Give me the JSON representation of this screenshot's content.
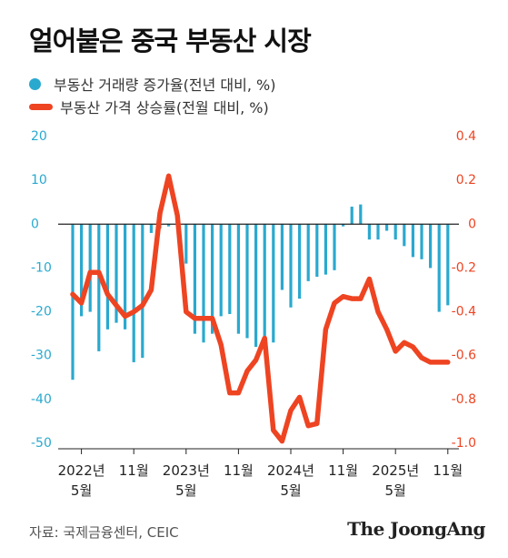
{
  "title": "얼어붙은 중국 부동산 시장",
  "legend": {
    "volume": "부동산 거래량 증가율(전년 대비, %)",
    "price": "부동산 가격 상승률(전월 대비, %)"
  },
  "colors": {
    "volume": "#2aa9cf",
    "price": "#ee4422"
  },
  "source": "자료: 국제금융센터, CEIC",
  "logo": "The JoongAng",
  "chart_data": {
    "type": "bar",
    "title": "얼어붙은 중국 부동산 시장",
    "y_left": {
      "ticks": [
        "20",
        "10",
        "0",
        "-10",
        "-20",
        "-30",
        "-40",
        "-50"
      ],
      "range": [
        -50,
        20
      ]
    },
    "y_right": {
      "ticks": [
        "0.4",
        "0.2",
        "0",
        "-0.2",
        "-0.4",
        "-0.6",
        "-0.8",
        "-1.0"
      ],
      "range": [
        -1.0,
        0.4
      ]
    },
    "x_ticks": [
      {
        "line1": "2022년",
        "line2": "5월"
      },
      {
        "line1": "11월",
        "line2": ""
      },
      {
        "line1": "2023년",
        "line2": "5월"
      },
      {
        "line1": "11월",
        "line2": ""
      },
      {
        "line1": "2024년",
        "line2": "5월"
      },
      {
        "line1": "11월",
        "line2": ""
      },
      {
        "line1": "2025년",
        "line2": "5월"
      },
      {
        "line1": "11월",
        "line2": ""
      }
    ],
    "months": [
      "2022-04",
      "2022-05",
      "2022-06",
      "2022-07",
      "2022-08",
      "2022-09",
      "2022-10",
      "2022-11",
      "2022-12",
      "2023-01",
      "2023-02",
      "2023-03",
      "2023-04",
      "2023-05",
      "2023-06",
      "2023-07",
      "2023-08",
      "2023-09",
      "2023-10",
      "2023-11",
      "2023-12",
      "2024-01",
      "2024-02",
      "2024-03",
      "2024-04",
      "2024-05",
      "2024-06",
      "2024-07",
      "2024-08",
      "2024-09",
      "2024-10",
      "2024-11",
      "2024-12",
      "2025-01",
      "2025-02",
      "2025-03",
      "2025-04",
      "2025-05",
      "2025-06",
      "2025-07",
      "2025-08",
      "2025-09",
      "2025-10",
      "2025-11"
    ],
    "series": [
      {
        "name": "부동산 거래량 증가율(전년 대비, %)",
        "type": "bar",
        "axis": "left",
        "values": [
          -35.5,
          -21,
          -20,
          -29,
          -24,
          -22.5,
          -24,
          -31.5,
          -30.5,
          -2,
          -1,
          -0.5,
          0.5,
          -9,
          -25,
          -27,
          -25,
          -21,
          -20.5,
          -25,
          -26,
          -28,
          -28,
          -27,
          -15,
          -19,
          -17,
          -13,
          -12,
          -11.5,
          -10.5,
          -0.5,
          4,
          4.5,
          -3.5,
          -3.5,
          -1.5,
          -3.5,
          -5,
          -7.5,
          -8,
          -10,
          -20,
          -18.5
        ]
      },
      {
        "name": "부동산 가격 상승률(전월 대비, %)",
        "type": "line",
        "axis": "right",
        "values": [
          -0.32,
          -0.36,
          -0.22,
          -0.22,
          -0.32,
          -0.37,
          -0.42,
          -0.4,
          -0.37,
          -0.3,
          0.05,
          0.22,
          0.04,
          -0.4,
          -0.43,
          -0.43,
          -0.43,
          -0.55,
          -0.77,
          -0.77,
          -0.67,
          -0.62,
          -0.52,
          -0.94,
          -0.99,
          -0.85,
          -0.79,
          -0.92,
          -0.91,
          -0.48,
          -0.36,
          -0.33,
          -0.34,
          -0.34,
          -0.25,
          -0.4,
          -0.48,
          -0.58,
          -0.54,
          -0.56,
          -0.61,
          -0.63,
          -0.63,
          -0.63
        ]
      }
    ],
    "grid": false
  }
}
